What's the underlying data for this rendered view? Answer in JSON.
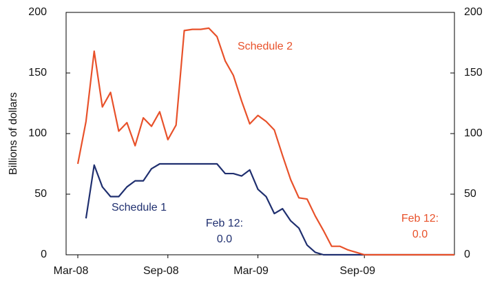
{
  "chart_data": {
    "type": "line",
    "y_label": "Billions of dollars",
    "categories": [
      "Mar-08",
      null,
      null,
      null,
      null,
      null,
      null,
      null,
      null,
      null,
      null,
      "Sep-08",
      null,
      null,
      null,
      null,
      null,
      null,
      null,
      null,
      null,
      null,
      "Mar-09",
      null,
      null,
      null,
      null,
      null,
      null,
      null,
      null,
      null,
      null,
      null,
      null,
      "Sep-09",
      null,
      null,
      null,
      null,
      null,
      null,
      null,
      null,
      null,
      null,
      null
    ],
    "series": [
      {
        "name": "Schedule 2",
        "color": "#e8512a",
        "values": [
          75,
          110,
          168,
          122,
          134,
          102,
          109,
          90,
          113,
          106,
          118,
          95,
          107,
          185,
          186,
          186,
          187,
          180,
          160,
          148,
          127,
          108,
          115,
          110,
          103,
          82,
          62,
          47,
          46,
          32,
          20,
          7,
          7,
          4,
          2,
          0,
          0,
          0,
          0,
          0,
          0,
          0,
          0,
          0,
          0,
          0,
          0
        ]
      },
      {
        "name": "Schedule 1",
        "color": "#1f2f6f",
        "values": [
          null,
          30,
          74,
          56,
          48,
          48,
          56,
          61,
          61,
          71,
          75,
          75,
          75,
          75,
          75,
          75,
          75,
          75,
          67,
          67,
          65,
          70,
          54,
          48,
          34,
          38,
          28,
          22,
          8,
          2,
          0,
          0,
          0,
          0,
          0,
          0,
          0,
          0,
          0,
          0,
          0,
          0,
          0,
          0,
          0,
          0,
          0
        ]
      }
    ],
    "annotations": [
      {
        "text": [
          "Feb 12:",
          "0.0"
        ],
        "color": "#1f2f6f"
      },
      {
        "text": [
          "Feb 12:",
          "0.0"
        ],
        "color": "#e8512a"
      }
    ],
    "ylim": [
      0,
      200
    ],
    "yticks": [
      0,
      50,
      100,
      150,
      200
    ],
    "y2lim": [
      0,
      200
    ],
    "y2ticks": [
      0,
      50,
      100,
      150,
      200
    ]
  }
}
